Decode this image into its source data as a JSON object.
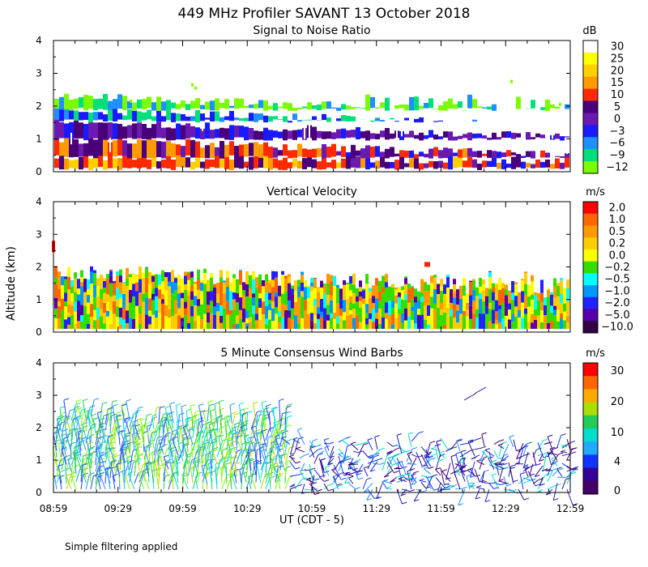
{
  "title": "449 MHz Profiler SAVANT 13 October 2018",
  "ylabel": "Altitude (km)",
  "xlabel": "UT  (CDT - 5)",
  "footnote": "Simple filtering applied",
  "x_ticks": [
    "08:59",
    "09:29",
    "09:59",
    "10:29",
    "10:59",
    "11:29",
    "11:59",
    "12:29",
    "12:59"
  ],
  "chart_data": [
    {
      "type": "heatmap",
      "title": "Signal to Noise Ratio",
      "ylabel": "Altitude (km)",
      "ylim": [
        0,
        4
      ],
      "yticks": [
        "0",
        "1",
        "2",
        "3",
        "4"
      ],
      "x_range_ut": [
        "08:59",
        "12:59"
      ],
      "colorbar": {
        "unit": "dB",
        "labels": [
          "30",
          "25",
          "20",
          "15",
          "10",
          "5",
          "0",
          "−3",
          "−6",
          "−9",
          "−12"
        ],
        "colors": [
          "#ffffff",
          "#ffff00",
          "#ffd000",
          "#ff9a00",
          "#ff2a00",
          "#4a007a",
          "#6a1ab0",
          "#1a1aff",
          "#1e90ff",
          "#00e07a",
          "#7cfc00"
        ]
      },
      "profile": [
        {
          "alt_km": [
            0.1,
            0.4
          ],
          "level": "10 to 20"
        },
        {
          "alt_km": [
            0.4,
            1.0
          ],
          "level": "5 to 15"
        },
        {
          "alt_km": [
            1.0,
            1.6
          ],
          "level": "0 to 5"
        },
        {
          "alt_km": [
            1.6,
            2.3
          ],
          "level": "-12 to -3"
        }
      ]
    },
    {
      "type": "heatmap",
      "title": "Vertical Velocity",
      "ylim": [
        0,
        4
      ],
      "yticks": [
        "0",
        "1",
        "2",
        "3",
        "4"
      ],
      "x_range_ut": [
        "08:59",
        "12:59"
      ],
      "colorbar": {
        "unit": "m/s",
        "labels": [
          "2.0",
          "1.0",
          "0.5",
          "0.2",
          "0.0",
          "−0.2",
          "−0.5",
          "−1.0",
          "−2.0",
          "−5.0",
          "−10.0"
        ],
        "colors": [
          "#ff0000",
          "#ff6600",
          "#ff9900",
          "#ffcc00",
          "#ffff00",
          "#33dd00",
          "#00ffff",
          "#0099ff",
          "#2222ff",
          "#5500aa",
          "#330044"
        ]
      },
      "typical_top_km": [
        1.3,
        2.0
      ]
    },
    {
      "type": "wind_barbs",
      "title": "5 Minute Consensus Wind Barbs",
      "ylim": [
        0,
        4
      ],
      "yticks": [
        "0",
        "1",
        "2",
        "3",
        "4"
      ],
      "x_range_ut": [
        "08:59",
        "12:59"
      ],
      "colorbar": {
        "unit": "m/s",
        "labels": [
          "30",
          "20",
          "10",
          "4",
          "0"
        ],
        "colors": [
          "#ff0000",
          "#ff6600",
          "#ffaa00",
          "#aadd00",
          "#22cc55",
          "#00ddcc",
          "#22aaff",
          "#1133ff",
          "#330099",
          "#440066"
        ]
      },
      "speed_range_ms": [
        0,
        15
      ],
      "typical_top_km": [
        1.5,
        2.6
      ]
    }
  ]
}
